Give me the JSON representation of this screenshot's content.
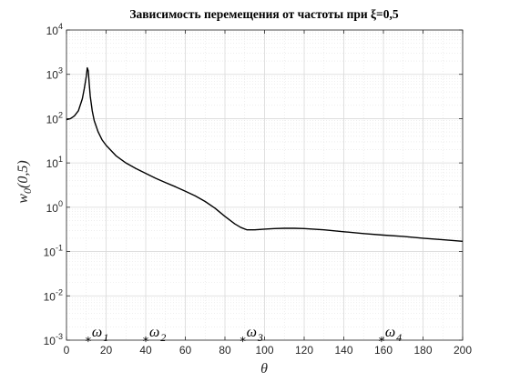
{
  "chart_data": {
    "type": "line",
    "title": "Зависимость перемещения от частоты при ξ=0,5",
    "xlabel": "θ",
    "ylabel": "w0(0,5)",
    "xlim": [
      0,
      200
    ],
    "ylim_log10": [
      -3,
      4
    ],
    "y_scale": "log",
    "grid": "on",
    "x_ticks": [
      "0",
      "20",
      "40",
      "60",
      "80",
      "100",
      "120",
      "140",
      "160",
      "180",
      "200"
    ],
    "y_ticks": [
      {
        "base": "10",
        "exp": "-3"
      },
      {
        "base": "10",
        "exp": "-2"
      },
      {
        "base": "10",
        "exp": "-1"
      },
      {
        "base": "10",
        "exp": "0"
      },
      {
        "base": "10",
        "exp": "1"
      },
      {
        "base": "10",
        "exp": "2"
      },
      {
        "base": "10",
        "exp": "3"
      },
      {
        "base": "10",
        "exp": "4"
      }
    ],
    "series": [
      {
        "color": "#000000",
        "x": [
          0,
          2,
          4,
          6,
          8,
          9,
          10,
          10.5,
          11,
          11.5,
          12,
          13,
          14,
          16,
          18,
          20,
          25,
          30,
          35,
          40,
          45,
          50,
          55,
          60,
          65,
          70,
          75,
          80,
          85,
          88,
          91,
          95,
          100,
          105,
          110,
          115,
          120,
          130,
          140,
          150,
          160,
          170,
          180,
          190,
          200
        ],
        "y": [
          95,
          100,
          115,
          150,
          280,
          480,
          900,
          1400,
          1200,
          600,
          320,
          150,
          90,
          50,
          33,
          25,
          14.5,
          10,
          7.5,
          5.8,
          4.5,
          3.6,
          2.9,
          2.3,
          1.8,
          1.35,
          0.95,
          0.62,
          0.42,
          0.35,
          0.31,
          0.31,
          0.32,
          0.33,
          0.335,
          0.335,
          0.33,
          0.31,
          0.28,
          0.255,
          0.235,
          0.22,
          0.2,
          0.185,
          0.17
        ]
      }
    ],
    "markers": [
      {
        "x": 11,
        "y": 0.001,
        "symbol": "*",
        "label": "ω",
        "sub": "1"
      },
      {
        "x": 40,
        "y": 0.001,
        "symbol": "*",
        "label": "ω",
        "sub": "2"
      },
      {
        "x": 89,
        "y": 0.001,
        "symbol": "*",
        "label": "ω",
        "sub": "3"
      },
      {
        "x": 159,
        "y": 0.001,
        "symbol": "*",
        "label": "ω",
        "sub": "4"
      }
    ],
    "ylabel_parts": {
      "main": "w",
      "sub": "0",
      "rest": "(0,5)"
    }
  }
}
